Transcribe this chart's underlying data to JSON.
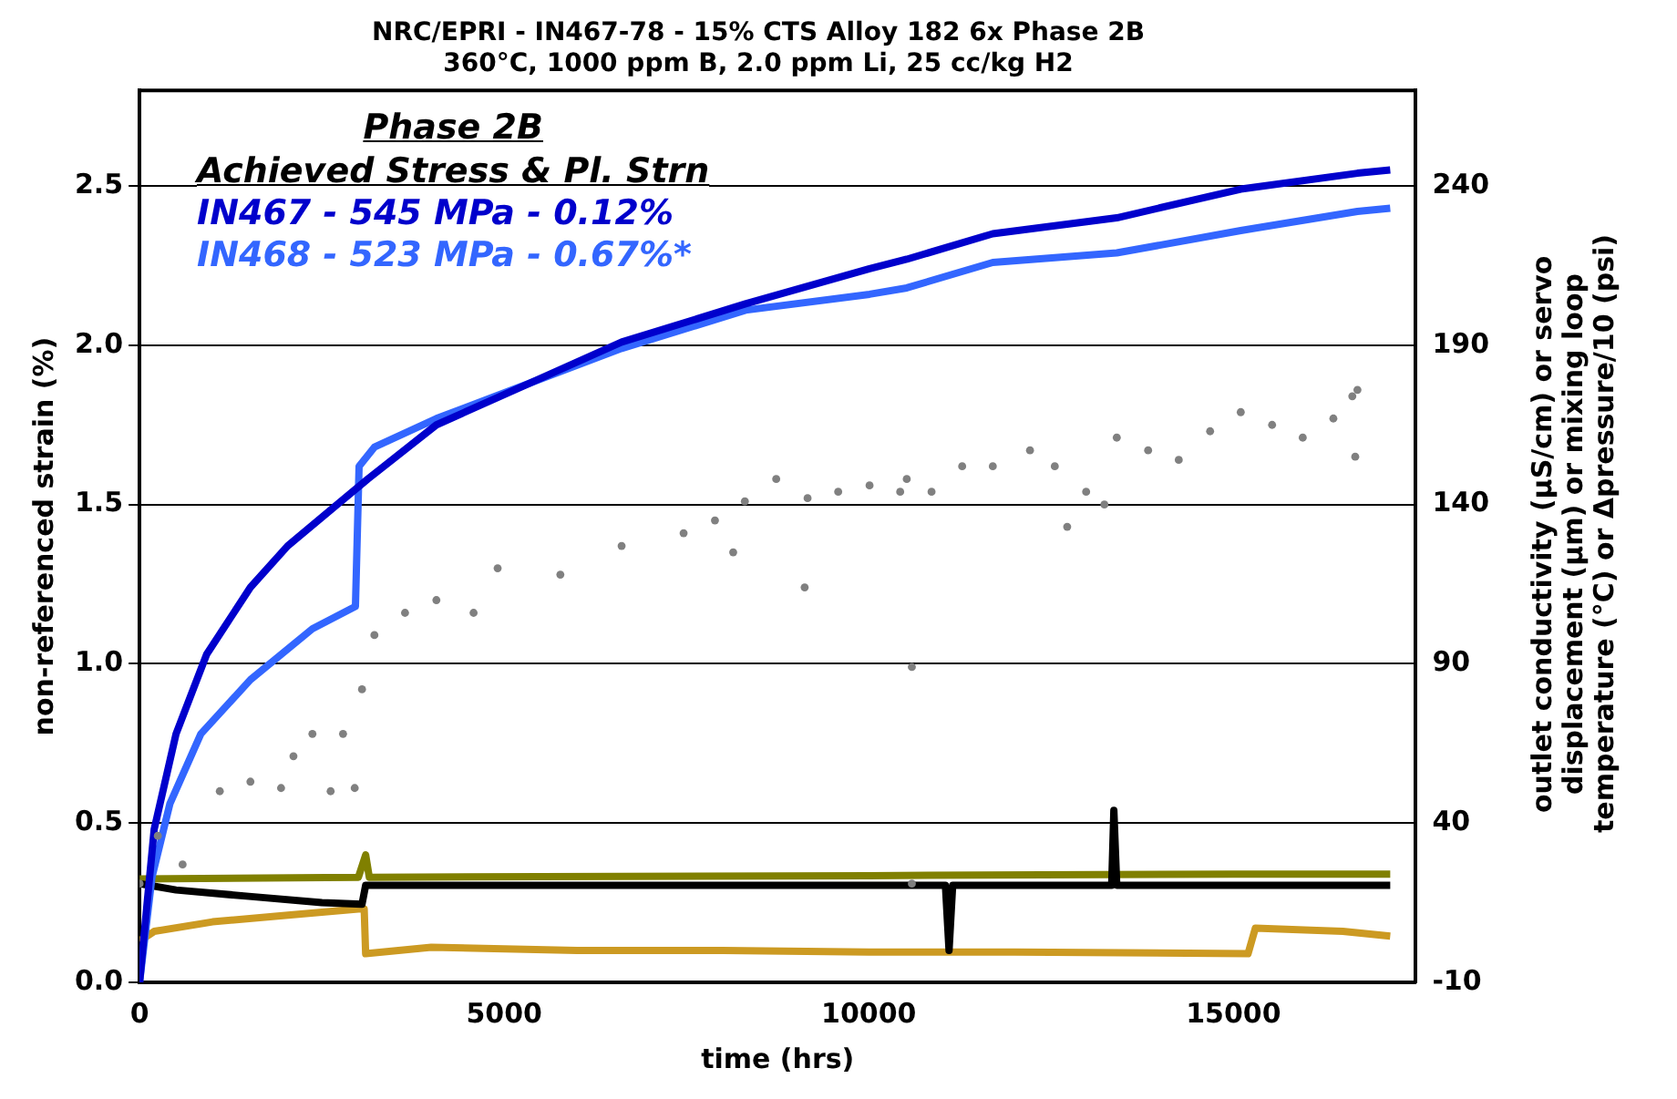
{
  "chart_data": {
    "type": "line",
    "title": "NRC/EPRI - IN467-78 - 15% CTS Alloy 182 6x Phase 2B",
    "subtitle": "360°C, 1000 ppm B, 2.0 ppm Li, 25 cc/kg H2",
    "xlabel": "time (hrs)",
    "y2label": "outlet conductivity (µS/cm) or servo displacement (µm) or mixing loop temperature (°C) or Δpressure/10 (psi)",
    "ylabel": "non-referenced strain (%)",
    "legend_title": "Phase 2B",
    "annotations": [
      "Achieved Stress & Pl. Strn"
    ],
    "legend": "top left",
    "grid": "y",
    "marker": "none",
    "line_style": "solid",
    "xlim": [
      0,
      17500
    ],
    "xticks": [
      0,
      5000,
      10000,
      15000
    ],
    "ylim": [
      0,
      2.8
    ],
    "yticks": [
      {
        "value": 0,
        "label": "0.0"
      },
      0.5,
      {
        "value": 1,
        "label": "1.0"
      },
      1.5,
      {
        "value": 2,
        "label": "2.0"
      },
      2.5
    ],
    "y2lim": [
      -10,
      270
    ],
    "y2ticks": [
      -10,
      40,
      90,
      140,
      190,
      240
    ],
    "series": [
      {
        "name": "IN467 - 545 MPa - 0.12%",
        "color": "#0000cc",
        "x": [
          0,
          200,
          500,
          920,
          1520,
          2030,
          2710,
          3130,
          4070,
          5340,
          6610,
          8310,
          10010,
          10520,
          11700,
          13400,
          15100,
          16700,
          17150
        ],
        "values": [
          0,
          0.48,
          0.78,
          1.03,
          1.24,
          1.37,
          1.5,
          1.58,
          1.75,
          1.88,
          2.01,
          2.13,
          2.24,
          2.27,
          2.35,
          2.4,
          2.49,
          2.54,
          2.55
        ]
      },
      {
        "name": "IN468 - 523 MPa - 0.67%*",
        "color": "#3366ff",
        "x": [
          0,
          170,
          415,
          840,
          1520,
          2370,
          2960,
          3010,
          3220,
          4070,
          5340,
          6610,
          8310,
          10010,
          10520,
          11700,
          13400,
          15100,
          16700,
          17150
        ],
        "values": [
          0,
          0.33,
          0.56,
          0.78,
          0.95,
          1.11,
          1.18,
          1.62,
          1.68,
          1.77,
          1.88,
          1.99,
          2.11,
          2.16,
          2.18,
          2.26,
          2.29,
          2.36,
          2.42,
          2.43
        ]
      },
      {
        "type": "scatter",
        "marker": "circle",
        "axis": "y2",
        "color": "#808080",
        "x": [
          0,
          250,
          590,
          1100,
          1520,
          1940,
          2110,
          2370,
          2620,
          2790,
          2950,
          3050,
          3220,
          3640,
          4070,
          4580,
          4910,
          5770,
          6610,
          7460,
          7890,
          8140,
          8300,
          8730,
          9120,
          9160,
          9580,
          10010,
          10430,
          10520,
          10590,
          10590,
          10860,
          11280,
          11700,
          12210,
          12550,
          12720,
          12980,
          13230,
          13400,
          13830,
          14250,
          14680,
          15100,
          15530,
          15950,
          16370,
          16630,
          16670,
          16700
        ],
        "values": [
          21,
          36,
          27,
          50,
          53,
          51,
          61,
          68,
          50,
          68,
          51,
          82,
          99,
          106,
          110,
          106,
          120,
          118,
          127,
          131,
          135,
          125,
          141,
          148,
          114,
          142,
          144,
          146,
          144,
          148,
          21,
          89,
          144,
          152,
          152,
          157,
          152,
          133,
          144,
          140,
          161,
          157,
          154,
          163,
          169,
          165,
          161,
          167,
          174,
          155,
          176
        ]
      },
      {
        "axis": "y2",
        "color": "#000000",
        "x": [
          0,
          500,
          1500,
          2500,
          3050,
          3100,
          11050,
          11100,
          11150,
          13330,
          13360,
          13400,
          17150
        ],
        "values": [
          21,
          19,
          17,
          15,
          14.5,
          20.5,
          20.5,
          0,
          20.5,
          20.5,
          44,
          20.5,
          20.5
        ]
      },
      {
        "axis": "y2",
        "color": "#808000",
        "x": [
          0,
          3000,
          3100,
          3150,
          10000,
          15000,
          17150
        ],
        "values": [
          22.5,
          23,
          30,
          23,
          23.5,
          24,
          24
        ]
      },
      {
        "axis": "y2",
        "color": "#cc9a22",
        "x": [
          0,
          200,
          1000,
          2000,
          3000,
          3080,
          3100,
          4000,
          6000,
          8000,
          10000,
          12000,
          15200,
          15300,
          16500,
          17150
        ],
        "values": [
          3,
          6,
          9,
          11,
          13,
          13,
          -1,
          1,
          0,
          0,
          -0.5,
          -0.5,
          -1,
          7,
          6,
          4.5
        ]
      }
    ]
  }
}
